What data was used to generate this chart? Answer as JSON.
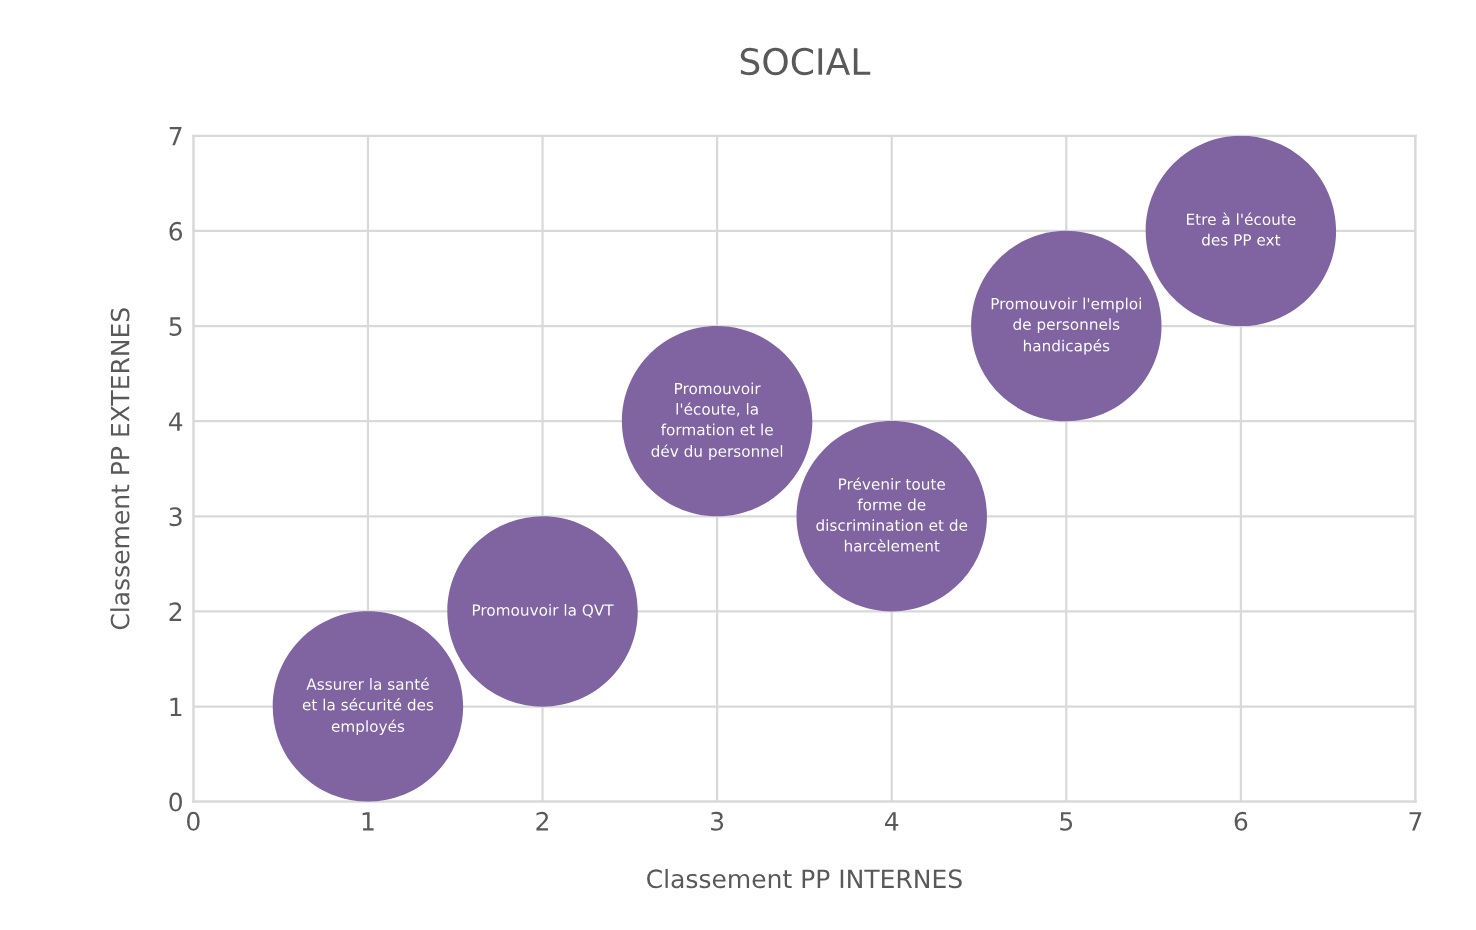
{
  "chart_data": {
    "type": "bubble",
    "title": "SOCIAL",
    "xlabel": "Classement PP INTERNES",
    "ylabel": "Classement PP EXTERNES",
    "x": [
      1,
      2,
      3,
      4,
      5,
      6
    ],
    "series": [
      {
        "color": "#8064a2",
        "values": [
          1,
          2,
          4,
          3,
          5,
          6
        ],
        "sizes": [
          1,
          1,
          1,
          1,
          1,
          1
        ]
      }
    ],
    "xlim": [
      0,
      7
    ],
    "ylim": [
      0,
      7
    ],
    "xticks": [
      0,
      1,
      2,
      3,
      4,
      5,
      6,
      7
    ],
    "yticks": [
      0,
      1,
      2,
      3,
      4,
      5,
      6,
      7
    ],
    "grid": true,
    "legend": false,
    "annotations": [
      {
        "text": "Assurer la santé\net la sécurité des\nemployés",
        "x": 1,
        "y": 1
      },
      {
        "text": "Promouvoir la QVT",
        "x": 2,
        "y": 2
      },
      {
        "text": "Promouvoir\nl'écoute, la\nformation et le\ndév du personnel",
        "x": 3,
        "y": 4
      },
      {
        "text": "Prévenir toute\nforme de\ndiscrimination et de\nharcèlement",
        "x": 4,
        "y": 3
      },
      {
        "text": "Promouvoir l'emploi\nde personnels\nhandicapés",
        "x": 5,
        "y": 5
      },
      {
        "text": "Etre à l'écoute\ndes PP ext",
        "x": 6,
        "y": 6
      }
    ]
  }
}
